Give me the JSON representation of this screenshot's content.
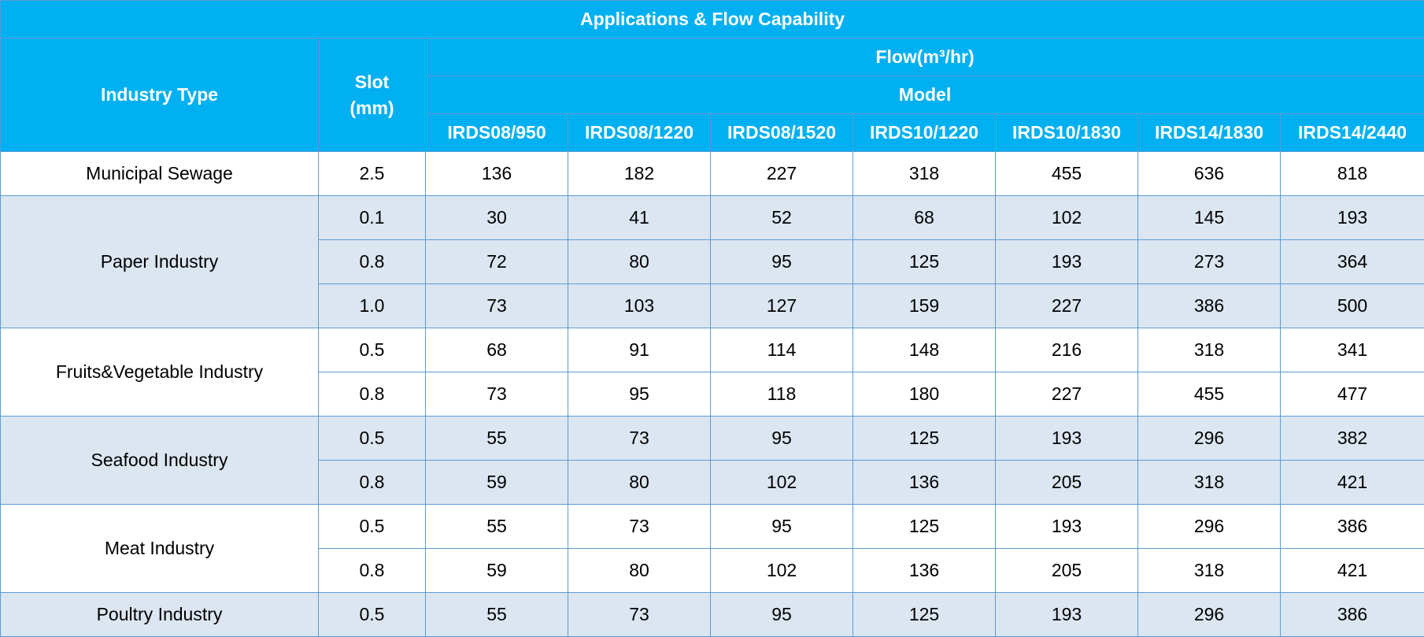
{
  "title": "Applications & Flow Capability",
  "header": {
    "industry": "Industry Type",
    "slot": "Slot\n(mm)",
    "flow": "Flow(m³/hr)",
    "model": "Model",
    "models": [
      "IRDS08/950",
      "IRDS08/1220",
      "IRDS08/1520",
      "IRDS10/1220",
      "IRDS10/1830",
      "IRDS14/1830",
      "IRDS14/2440"
    ]
  },
  "groups": [
    {
      "industry": "Municipal Sewage",
      "rows": [
        {
          "slot": "2.5",
          "flows": [
            136,
            182,
            227,
            318,
            455,
            636,
            818
          ]
        }
      ]
    },
    {
      "industry": "Paper Industry",
      "rows": [
        {
          "slot": "0.1",
          "flows": [
            30,
            41,
            52,
            68,
            102,
            145,
            193
          ]
        },
        {
          "slot": "0.8",
          "flows": [
            72,
            80,
            95,
            125,
            193,
            273,
            364
          ]
        },
        {
          "slot": "1.0",
          "flows": [
            73,
            103,
            127,
            159,
            227,
            386,
            500
          ]
        }
      ]
    },
    {
      "industry": "Fruits&Vegetable Industry",
      "rows": [
        {
          "slot": "0.5",
          "flows": [
            68,
            91,
            114,
            148,
            216,
            318,
            341
          ]
        },
        {
          "slot": "0.8",
          "flows": [
            73,
            95,
            118,
            180,
            227,
            455,
            477
          ]
        }
      ]
    },
    {
      "industry": "Seafood Industry",
      "rows": [
        {
          "slot": "0.5",
          "flows": [
            55,
            73,
            95,
            125,
            193,
            296,
            382
          ]
        },
        {
          "slot": "0.8",
          "flows": [
            59,
            80,
            102,
            136,
            205,
            318,
            421
          ]
        }
      ]
    },
    {
      "industry": "Meat Industry",
      "rows": [
        {
          "slot": "0.5",
          "flows": [
            55,
            73,
            95,
            125,
            193,
            296,
            386
          ]
        },
        {
          "slot": "0.8",
          "flows": [
            59,
            80,
            102,
            136,
            205,
            318,
            421
          ]
        }
      ]
    },
    {
      "industry": "Poultry Industry",
      "rows": [
        {
          "slot": "0.5",
          "flows": [
            55,
            73,
            95,
            125,
            193,
            296,
            386
          ]
        }
      ]
    }
  ]
}
